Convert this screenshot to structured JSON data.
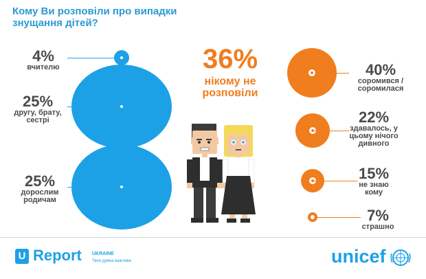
{
  "title": "Кому Ви розповіли про випадки знущання дітей?",
  "center": {
    "percent": "36%",
    "label": "нікому не розповіли"
  },
  "left_items": [
    {
      "percent": "4%",
      "label": "вчителю",
      "value": 4
    },
    {
      "percent": "25%",
      "label": "другу, брату, сестрі",
      "value": 25
    },
    {
      "percent": "25%",
      "label": "дорослим родичам",
      "value": 25
    }
  ],
  "right_items": [
    {
      "percent": "40%",
      "label": "соромився / соромилася",
      "value": 40
    },
    {
      "percent": "22%",
      "label": "здавалось, у цьому нічого дивного",
      "value": 22
    },
    {
      "percent": "15%",
      "label": "не знаю кому",
      "value": 15
    },
    {
      "percent": "7%",
      "label": "страшно",
      "value": 7
    }
  ],
  "footer": {
    "ureport_letter": "U",
    "ureport_name": "Report",
    "country": "UKRAINE",
    "tagline": "Твоя думка важлива",
    "partner": "unicef"
  },
  "colors": {
    "blue": "#1ca1e6",
    "orange": "#f07d1e",
    "text": "#4a4a4a"
  }
}
